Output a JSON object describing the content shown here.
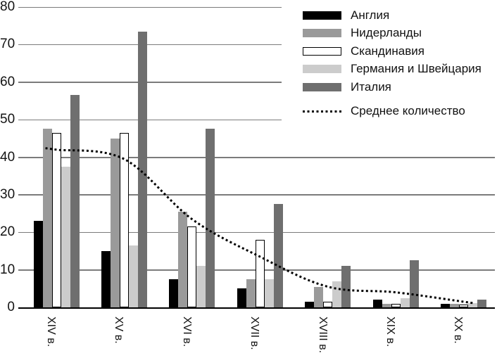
{
  "chart_data": {
    "type": "bar",
    "title": "",
    "xlabel": "",
    "ylabel": "",
    "categories": [
      "XIV в.",
      "XV в.",
      "XVI в.",
      "XVII в.",
      "XVIII в.",
      "XIX в.",
      "XX в."
    ],
    "series": [
      {
        "name": "Англия",
        "color": "#000000",
        "values": [
          23,
          15,
          7.5,
          5,
          1.5,
          2,
          1
        ]
      },
      {
        "name": "Нидерланды",
        "color": "#9a9a9a",
        "values": [
          47.5,
          45,
          25.5,
          7.5,
          5.5,
          1,
          1
        ]
      },
      {
        "name": "Скандинавия",
        "color": "#ffffff",
        "border": "#000000",
        "values": [
          46.5,
          46.5,
          21.5,
          18,
          1.5,
          1,
          0.8
        ]
      },
      {
        "name": "Германия и Швейцария",
        "color": "#cccccc",
        "values": [
          37.5,
          16.5,
          11,
          7.5,
          7,
          2.5,
          1.2
        ]
      },
      {
        "name": "Италия",
        "color": "#6f6f6f",
        "values": [
          56.5,
          73.5,
          47.5,
          27.5,
          11,
          12.5,
          2
        ]
      }
    ],
    "line_series": {
      "name": "Среднее количество",
      "style": "dotted",
      "color": "#000000",
      "values": [
        42,
        39.5,
        23.5,
        13.5,
        5.5,
        4,
        1.5
      ]
    },
    "ylim": [
      0,
      80
    ],
    "ytick_step": 10,
    "yticks": [
      "0",
      "10",
      "20",
      "30",
      "40",
      "50",
      "60",
      "70",
      "80"
    ],
    "grid": true,
    "legend_position": "top-right"
  },
  "colors": {
    "background": "#ffffff",
    "gridline": "#7b7b7b",
    "axis": "#000000",
    "text": "#141414"
  }
}
